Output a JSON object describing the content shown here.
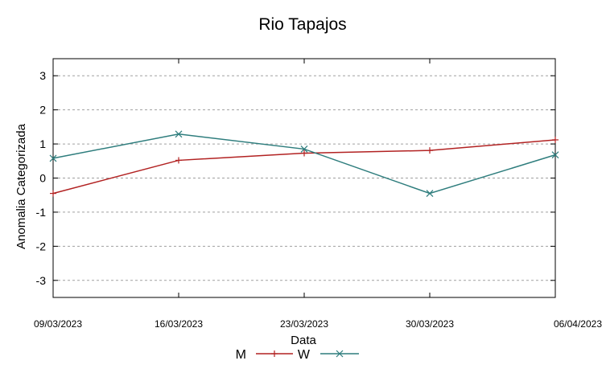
{
  "chart_data": {
    "type": "line",
    "title": "Rio Tapajos",
    "xlabel": "Data",
    "ylabel": "Anomalia Categorizada",
    "categories": [
      "09/03/2023",
      "16/03/2023",
      "23/03/2023",
      "30/03/2023",
      "06/04/2023"
    ],
    "ylim": [
      -3.5,
      3.5
    ],
    "yticks": [
      3,
      2,
      1,
      0,
      -1,
      -2,
      -3
    ],
    "ytick_labels": [
      "3",
      "2",
      "1",
      "0",
      "-1",
      "-2",
      "-3"
    ],
    "grid": true,
    "legend_position": "bottom-center",
    "series": [
      {
        "name": "M",
        "color": "#b22222",
        "marker": "plus",
        "values": [
          -0.45,
          0.52,
          0.73,
          0.81,
          1.12
        ]
      },
      {
        "name": "W",
        "color": "#2e7d7d",
        "marker": "cross",
        "values": [
          0.58,
          1.29,
          0.85,
          -0.45,
          0.68
        ]
      }
    ]
  }
}
